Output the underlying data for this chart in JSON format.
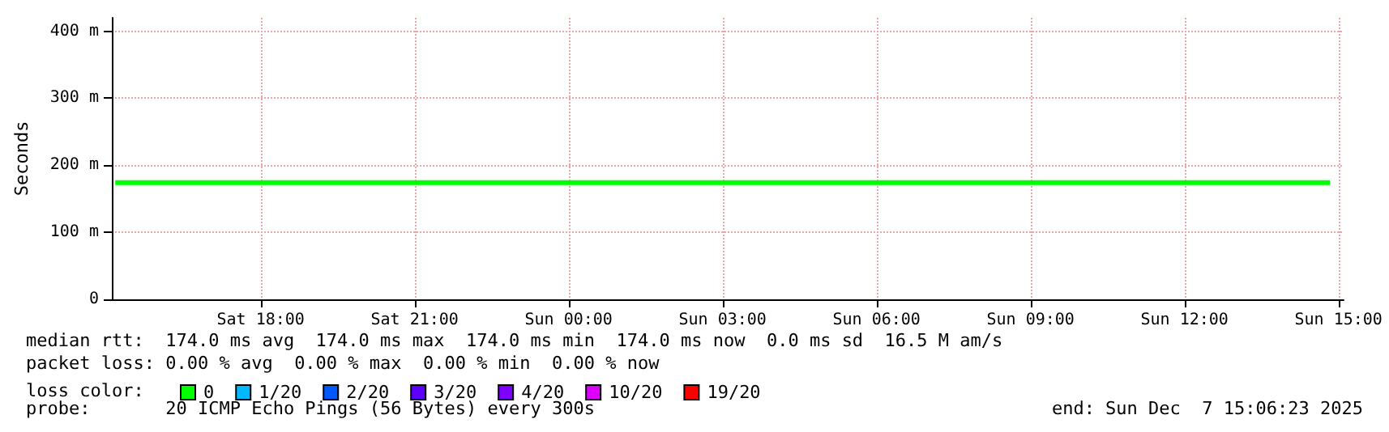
{
  "chart_data": {
    "type": "line",
    "ylabel": "Seconds",
    "x": [
      "2025-12-06T15:10",
      "2025-12-07T14:50"
    ],
    "xlim": [
      "2025-12-06T15:06",
      "2025-12-07T15:06"
    ],
    "xticks": [
      {
        "value": "2025-12-06T18:00",
        "label": "Sat 18:00"
      },
      {
        "value": "2025-12-06T21:00",
        "label": "Sat 21:00"
      },
      {
        "value": "2025-12-07T00:00",
        "label": "Sun 00:00"
      },
      {
        "value": "2025-12-07T03:00",
        "label": "Sun 03:00"
      },
      {
        "value": "2025-12-07T06:00",
        "label": "Sun 06:00"
      },
      {
        "value": "2025-12-07T09:00",
        "label": "Sun 09:00"
      },
      {
        "value": "2025-12-07T12:00",
        "label": "Sun 12:00"
      },
      {
        "value": "2025-12-07T15:00",
        "label": "Sun 15:00"
      }
    ],
    "ylim": [
      0,
      420
    ],
    "yticks": [
      0,
      {
        "value": 100,
        "label": "100 m"
      },
      {
        "value": 200,
        "label": "200 m"
      },
      {
        "value": 300,
        "label": "300 m"
      },
      {
        "value": 400,
        "label": "400 m"
      }
    ],
    "series": [
      {
        "name": "0",
        "color": "#00ff00",
        "values": [
          174,
          174
        ]
      },
      {
        "name": "1/20",
        "color": "#00b8ff",
        "values": [
          null,
          null
        ]
      },
      {
        "name": "2/20",
        "color": "#0059ff",
        "values": [
          null,
          null
        ]
      },
      {
        "name": "3/20",
        "color": "#5e00ff",
        "values": [
          null,
          null
        ]
      },
      {
        "name": "4/20",
        "color": "#7e00ff",
        "values": [
          null,
          null
        ]
      },
      {
        "name": "10/20",
        "color": "#dd00ff",
        "values": [
          null,
          null
        ]
      },
      {
        "name": "19/20",
        "color": "#ff0000",
        "values": [
          null,
          null
        ]
      }
    ],
    "legend_title": "loss color:",
    "legend": "bottom left",
    "grid": true,
    "marker": "none",
    "line_style": "solid",
    "annotations": [
      "median rtt:  174.0 ms avg  174.0 ms max  174.0 ms min  174.0 ms now  0.0 ms sd  16.5 M am/s",
      "packet loss: 0.00 % avg  0.00 % max  0.00 % min  0.00 % now",
      "probe:       20 ICMP Echo Pings (56 Bytes) every 300s",
      "end: Sun Dec  7 15:06:23 2025"
    ]
  }
}
